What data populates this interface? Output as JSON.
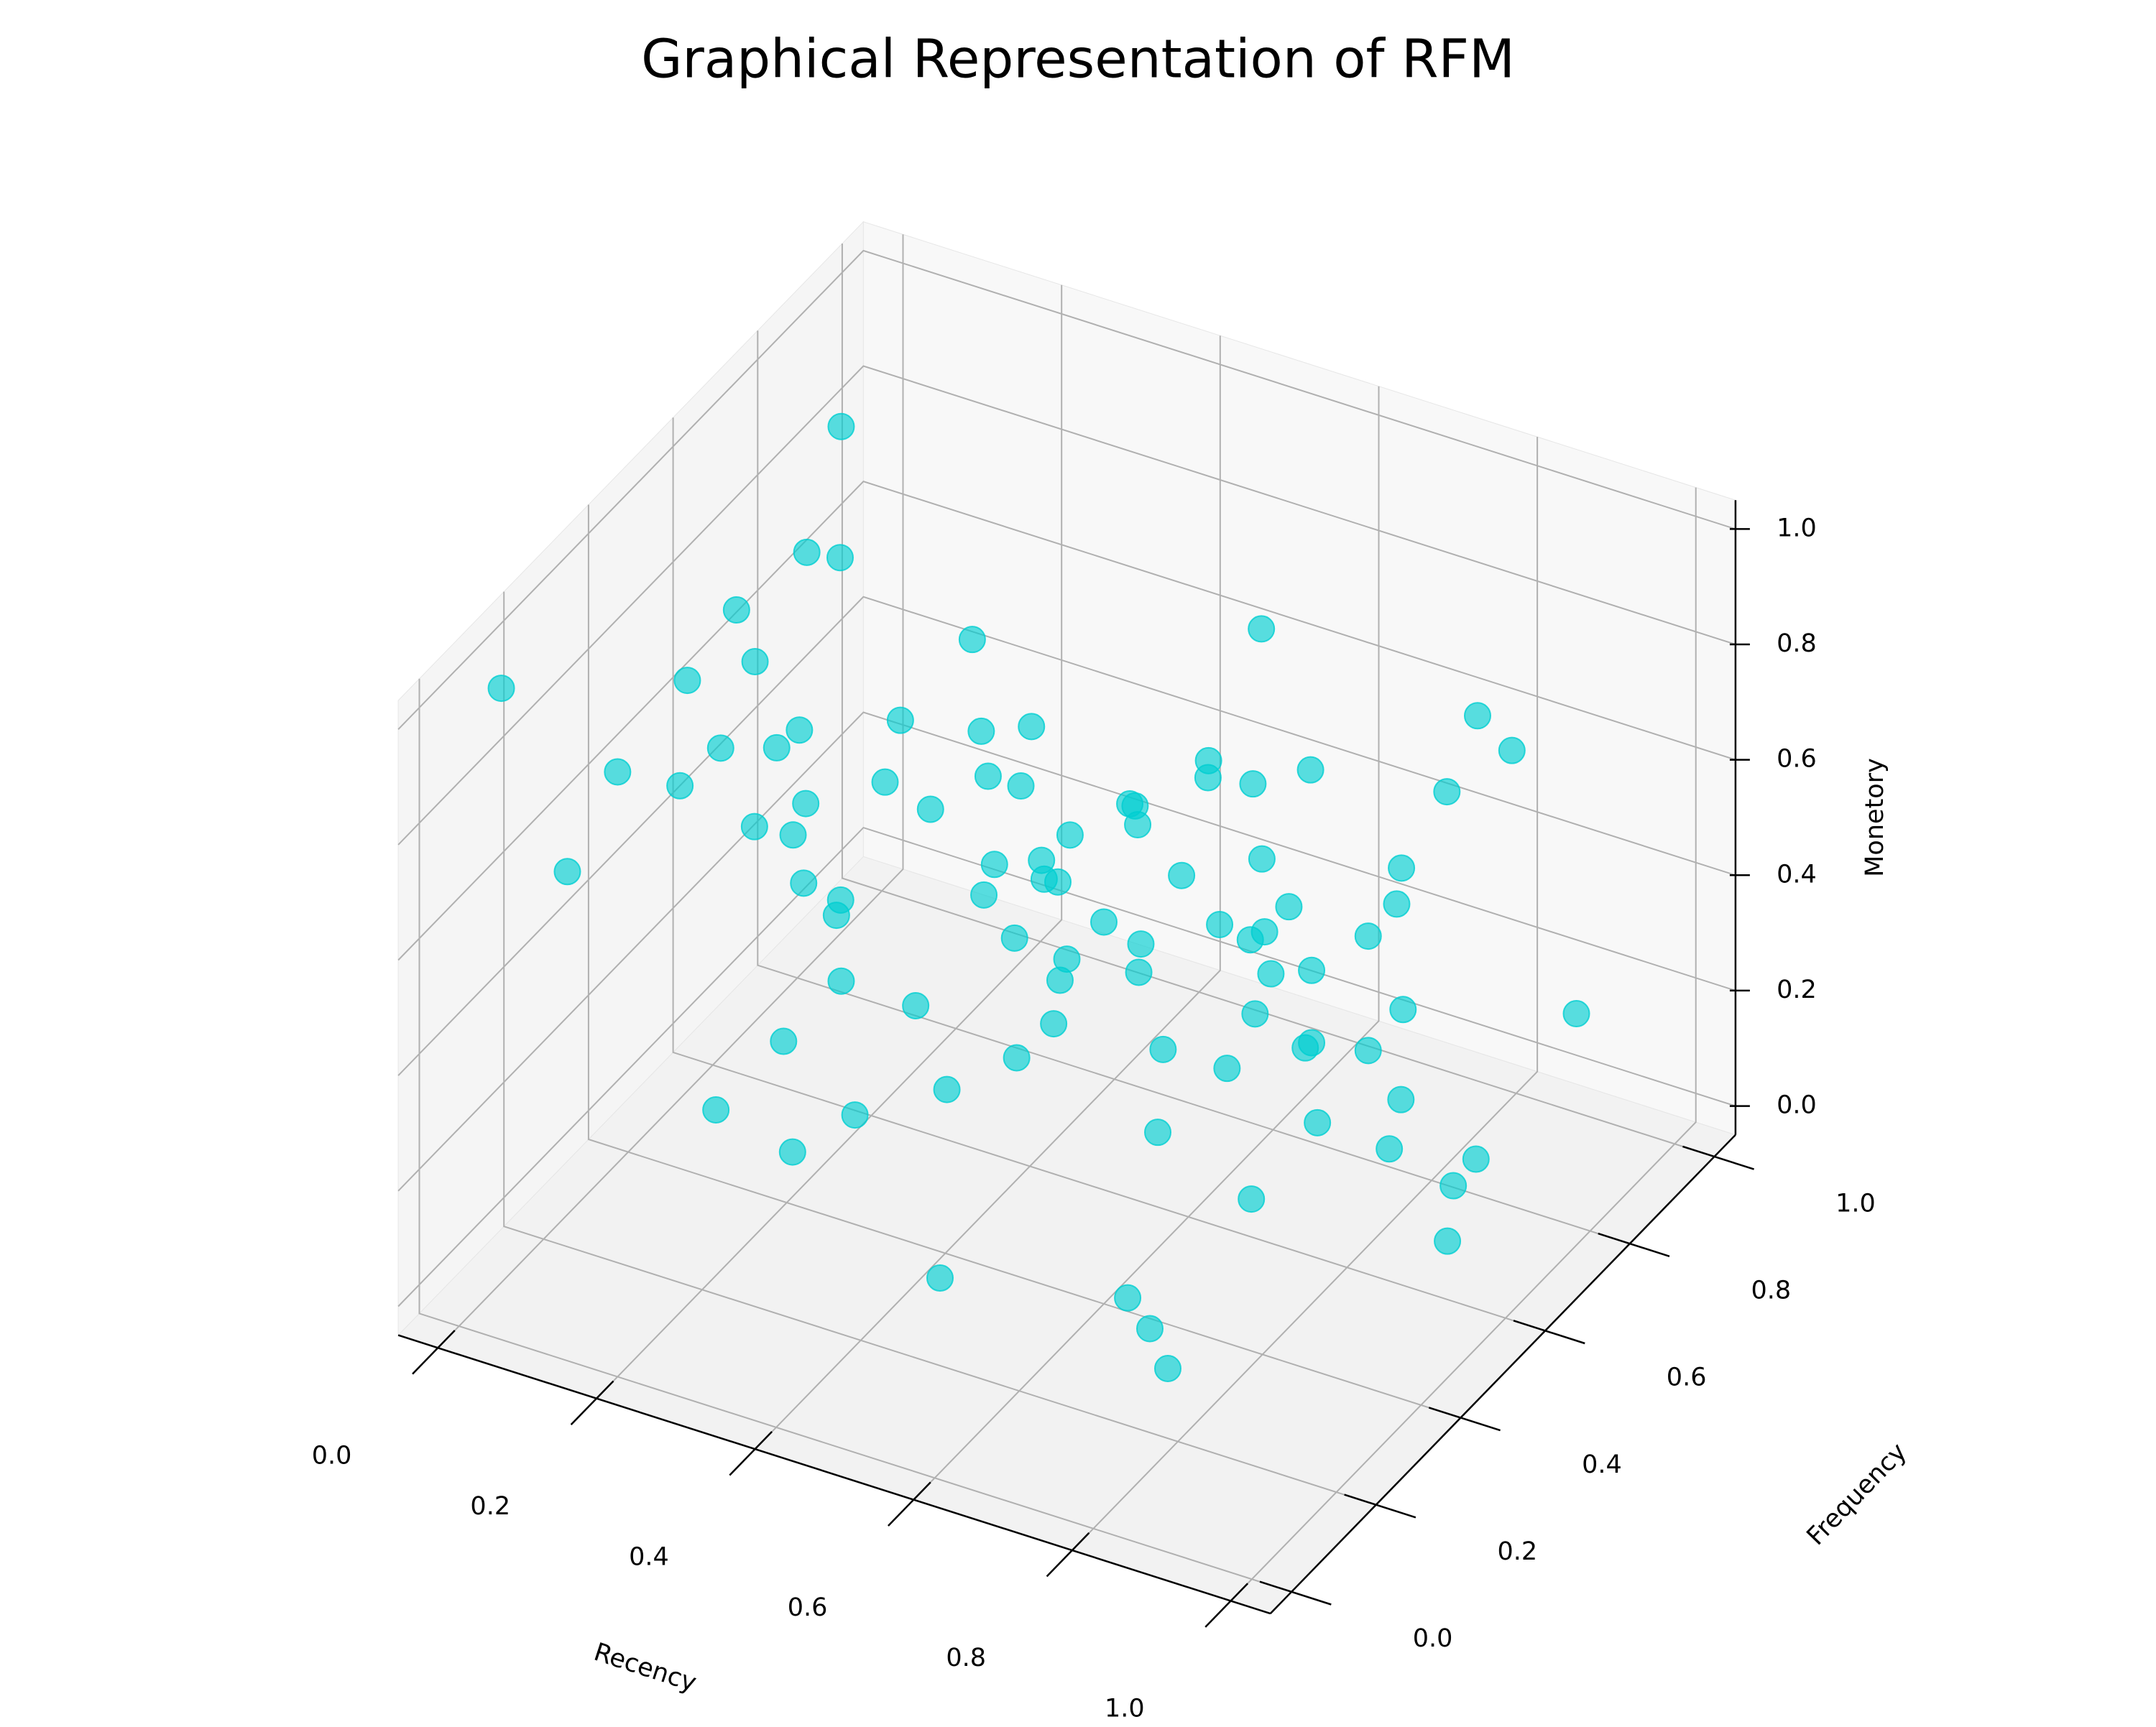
{
  "chart_data": {
    "type": "scatter3d",
    "title": "Graphical Representation of RFM",
    "x_label": "Recency",
    "y_label": "Frequency",
    "z_label": "Monetory",
    "color": "#00ced1",
    "xlim": [
      -0.05,
      1.05
    ],
    "ylim": [
      -0.05,
      1.05
    ],
    "zlim": [
      -0.05,
      1.05
    ],
    "xticks": [
      {
        "value": 0,
        "label": "0.0"
      },
      0.2,
      0.4,
      0.6,
      0.8,
      {
        "value": 1,
        "label": "1.0"
      }
    ],
    "yticks": [
      {
        "value": 0,
        "label": "0.0"
      },
      0.2,
      0.4,
      0.6,
      0.8,
      {
        "value": 1,
        "label": "1.0"
      }
    ],
    "zticks": [
      {
        "value": 0,
        "label": "0.0"
      },
      0.2,
      0.4,
      0.6,
      0.8,
      {
        "value": 1,
        "label": "1.0"
      }
    ],
    "grid": true,
    "x": [
      0.12,
      0.25,
      0.33,
      0.41,
      0.55,
      0.62,
      0.71,
      0.83,
      0.91,
      0.05,
      0.18,
      0.29,
      0.38,
      0.47,
      0.58,
      0.66,
      0.77,
      0.88,
      0.97,
      0.1,
      0.22,
      0.35,
      0.44,
      0.52,
      0.6,
      0.69,
      0.8,
      0.86,
      0.94,
      0.03,
      0.15,
      0.27,
      0.36,
      0.49,
      0.57,
      0.64,
      0.73,
      0.82,
      0.92,
      0.08,
      0.2,
      0.31,
      0.43,
      0.51,
      0.63,
      0.7,
      0.79,
      0.89,
      0.96,
      0.02,
      0.14,
      0.24,
      0.39,
      0.46,
      0.56,
      0.68,
      0.75,
      0.85,
      0.93,
      0.06,
      0.17,
      0.28,
      0.37,
      0.48,
      0.59,
      0.65,
      0.74,
      0.84,
      0.95,
      0.11,
      0.21,
      0.32,
      0.42,
      0.53,
      0.61,
      0.72,
      0.81,
      0.9,
      0.99,
      0.04,
      0.16,
      0.26,
      0.45,
      0.54,
      0.67,
      0.78,
      0.87,
      0.98,
      0.0,
      0.5
    ],
    "y": [
      0.15,
      0.32,
      0.08,
      0.55,
      0.21,
      0.72,
      0.44,
      0.12,
      0.63,
      0.81,
      0.27,
      0.5,
      0.9,
      0.37,
      0.05,
      0.66,
      0.19,
      0.84,
      0.41,
      0.58,
      0.11,
      0.76,
      0.29,
      0.93,
      0.48,
      0.02,
      0.7,
      0.35,
      0.88,
      0.2,
      0.62,
      0.43,
      0.14,
      0.79,
      0.26,
      0.95,
      0.53,
      0.07,
      0.68,
      0.39,
      0.86,
      0.17,
      0.6,
      0.31,
      0.82,
      0.46,
      0.1,
      0.74,
      0.23,
      0.97,
      0.56,
      0.34,
      0.69,
      0.04,
      0.87,
      0.25,
      0.61,
      0.42,
      0.13,
      0.78,
      0.3,
      0.92,
      0.52,
      0.18,
      0.71,
      0.38,
      0.83,
      0.09,
      0.57,
      0.45,
      0.99,
      0.22,
      0.65,
      0.36,
      0.01,
      0.8,
      0.28,
      0.54,
      0.16,
      0.73,
      0.4,
      0.89,
      0.06,
      0.64,
      0.33,
      0.77,
      0.24,
      0.5,
      0.1,
      0.94
    ],
    "z": [
      0.85,
      0.12,
      0.9,
      0.18,
      0.78,
      0.22,
      0.88,
      0.15,
      0.8,
      0.92,
      0.2,
      0.75,
      0.1,
      0.83,
      0.25,
      0.95,
      0.14,
      0.7,
      0.86,
      0.05,
      0.9,
      0.3,
      0.82,
      0.16,
      0.72,
      0.91,
      0.08,
      0.79,
      0.24,
      0.6,
      0.88,
      0.11,
      0.77,
      0.35,
      0.94,
      0.19,
      0.68,
      0.87,
      0.13,
      0.81,
      0.42,
      0.96,
      0.21,
      0.74,
      0.09,
      0.89,
      0.27,
      0.84,
      0.55,
      0.17,
      0.93,
      0.65,
      0.2,
      0.86,
      0.15,
      0.76,
      0.31,
      0.97,
      0.48,
      0.1,
      0.8,
      0.23,
      0.91,
      0.58,
      0.12,
      0.85,
      0.38,
      0.73,
      0.18,
      0.9,
      0.07,
      0.83,
      0.28,
      0.95,
      0.62,
      0.14,
      0.79,
      0.33,
      0.88,
      0.45,
      0.87,
      0.2,
      0.7,
      0.04,
      0.9,
      0.26,
      0.82,
      0.15,
      0.98,
      0.4
    ]
  }
}
